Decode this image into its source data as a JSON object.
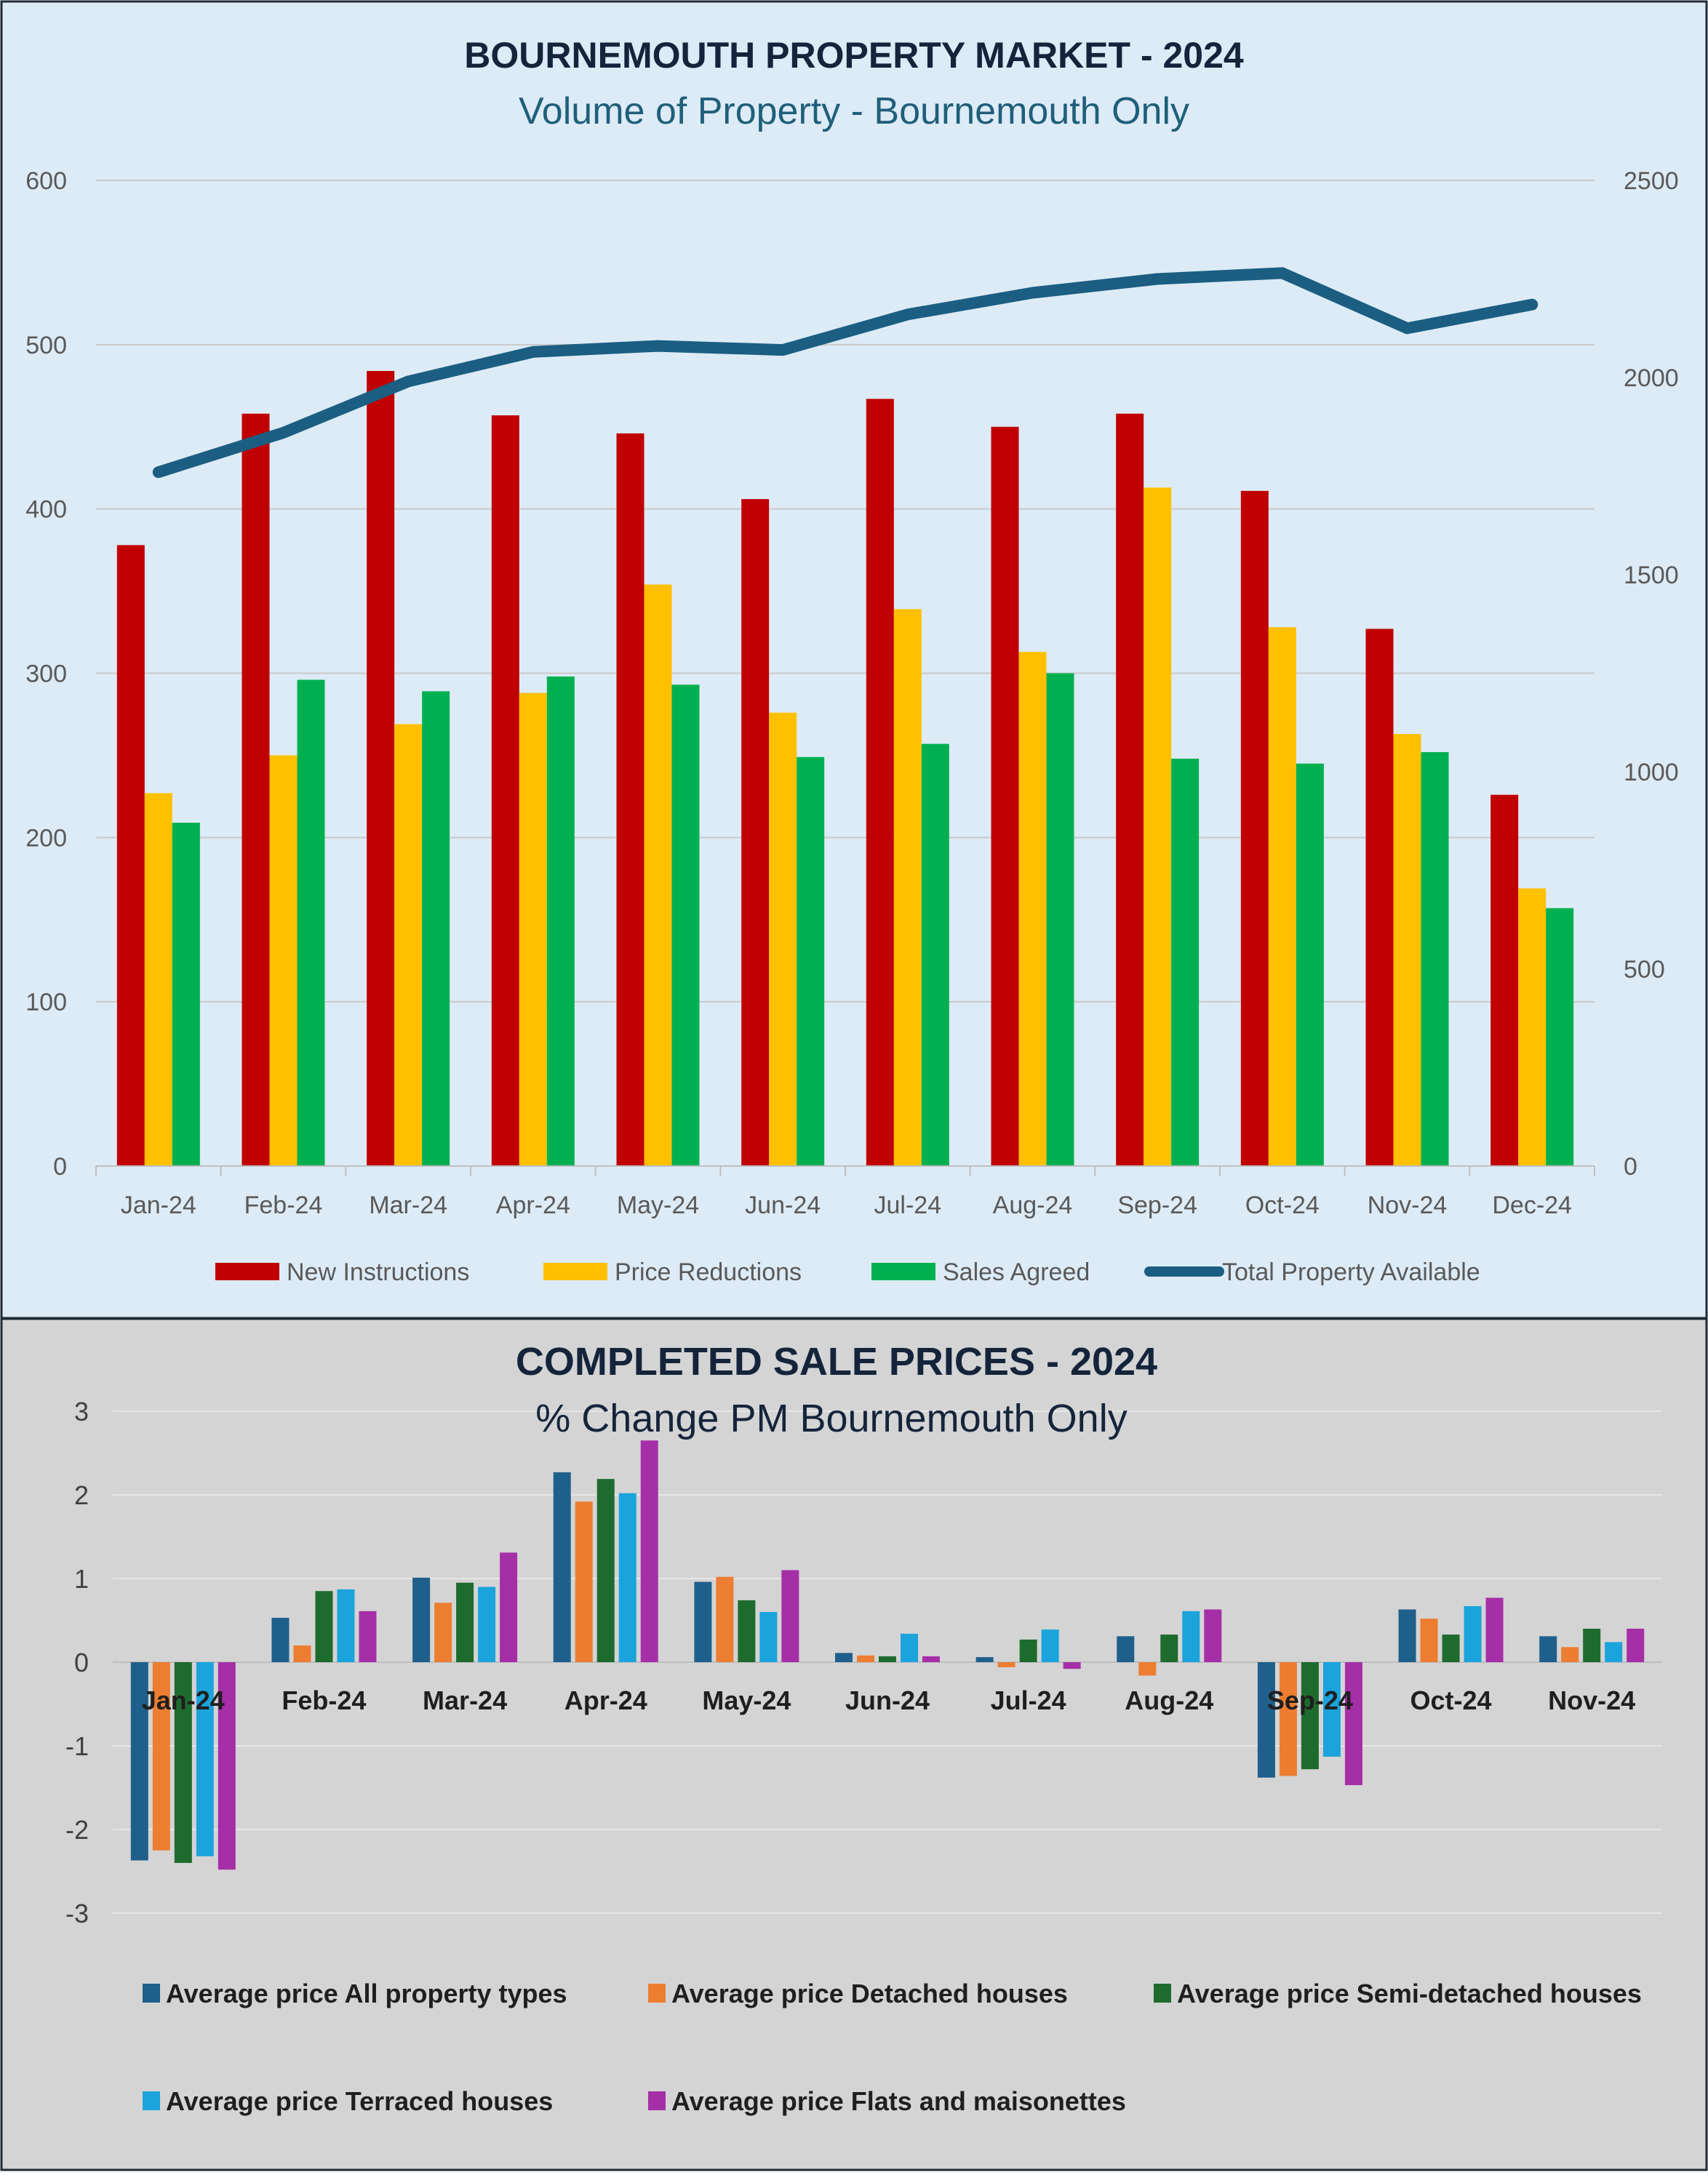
{
  "chart_data": [
    {
      "type": "bar",
      "title": "BOURNEMOUTH PROPERTY MARKET - 2024",
      "subtitle": "Volume of Property - Bournemouth Only",
      "categories": [
        "Jan-24",
        "Feb-24",
        "Mar-24",
        "Apr-24",
        "May-24",
        "Jun-24",
        "Jul-24",
        "Aug-24",
        "Sep-24",
        "Oct-24",
        "Nov-24",
        "Dec-24"
      ],
      "y_left": {
        "min": 0,
        "max": 600,
        "ticks": [
          "0",
          "100",
          "200",
          "300",
          "400",
          "500",
          "600"
        ]
      },
      "y_right": {
        "min": 0,
        "max": 2500,
        "ticks": [
          "0",
          "500",
          "1000",
          "1500",
          "2000",
          "2500"
        ]
      },
      "grid": true,
      "legend_position": "bottom",
      "series": [
        {
          "name": "New Instructions",
          "kind": "bar",
          "axis": "left",
          "color": "#c00000",
          "values": [
            378,
            458,
            484,
            457,
            446,
            406,
            467,
            450,
            458,
            411,
            327,
            226
          ]
        },
        {
          "name": "Price Reductions",
          "kind": "bar",
          "axis": "left",
          "color": "#ffc000",
          "values": [
            227,
            250,
            269,
            288,
            354,
            276,
            339,
            313,
            413,
            328,
            263,
            169
          ]
        },
        {
          "name": "Sales Agreed",
          "kind": "bar",
          "axis": "left",
          "color": "#00b050",
          "values": [
            209,
            296,
            289,
            298,
            293,
            249,
            257,
            300,
            248,
            245,
            252,
            157
          ]
        },
        {
          "name": "Total Property Available",
          "kind": "line",
          "axis": "right",
          "color": "#1b5e82",
          "values": [
            1760,
            1860,
            1990,
            2065,
            2080,
            2070,
            2160,
            2215,
            2250,
            2265,
            2125,
            2185
          ]
        }
      ]
    },
    {
      "type": "bar",
      "title": "COMPLETED SALE PRICES - 2024",
      "subtitle": "% Change PM  Bournemouth Only",
      "categories": [
        "Jan-24",
        "Feb-24",
        "Mar-24",
        "Apr-24",
        "May-24",
        "Jun-24",
        "Jul-24",
        "Aug-24",
        "Sep-24",
        "Oct-24",
        "Nov-24"
      ],
      "y": {
        "min": -3,
        "max": 3,
        "ticks": [
          "-3",
          "-2",
          "-1",
          "0",
          "1",
          "2",
          "3"
        ]
      },
      "grid": true,
      "legend_position": "bottom",
      "series": [
        {
          "name": "Average price All property types",
          "color": "#1f5f8b",
          "values": [
            -2.37,
            0.53,
            1.01,
            2.27,
            0.96,
            0.11,
            0.06,
            0.31,
            -1.38,
            0.63,
            0.31
          ]
        },
        {
          "name": "Average price Detached houses",
          "color": "#ed7d31",
          "values": [
            -2.25,
            0.2,
            0.71,
            1.92,
            1.02,
            0.08,
            -0.06,
            -0.16,
            -1.36,
            0.52,
            0.18
          ]
        },
        {
          "name": "Average price Semi-detached houses",
          "color": "#1e6b2e",
          "values": [
            -2.4,
            0.85,
            0.95,
            2.19,
            0.74,
            0.07,
            0.27,
            0.33,
            -1.28,
            0.33,
            0.4
          ]
        },
        {
          "name": "Average price Terraced houses",
          "color": "#1ba3dc",
          "values": [
            -2.32,
            0.87,
            0.9,
            2.02,
            0.6,
            0.34,
            0.39,
            0.61,
            -1.13,
            0.67,
            0.24
          ]
        },
        {
          "name": "Average price Flats and maisonettes",
          "color": "#a52fa6",
          "values": [
            -2.48,
            0.61,
            1.31,
            2.65,
            1.1,
            0.07,
            -0.08,
            0.63,
            -1.47,
            0.77,
            0.4
          ]
        }
      ]
    }
  ]
}
